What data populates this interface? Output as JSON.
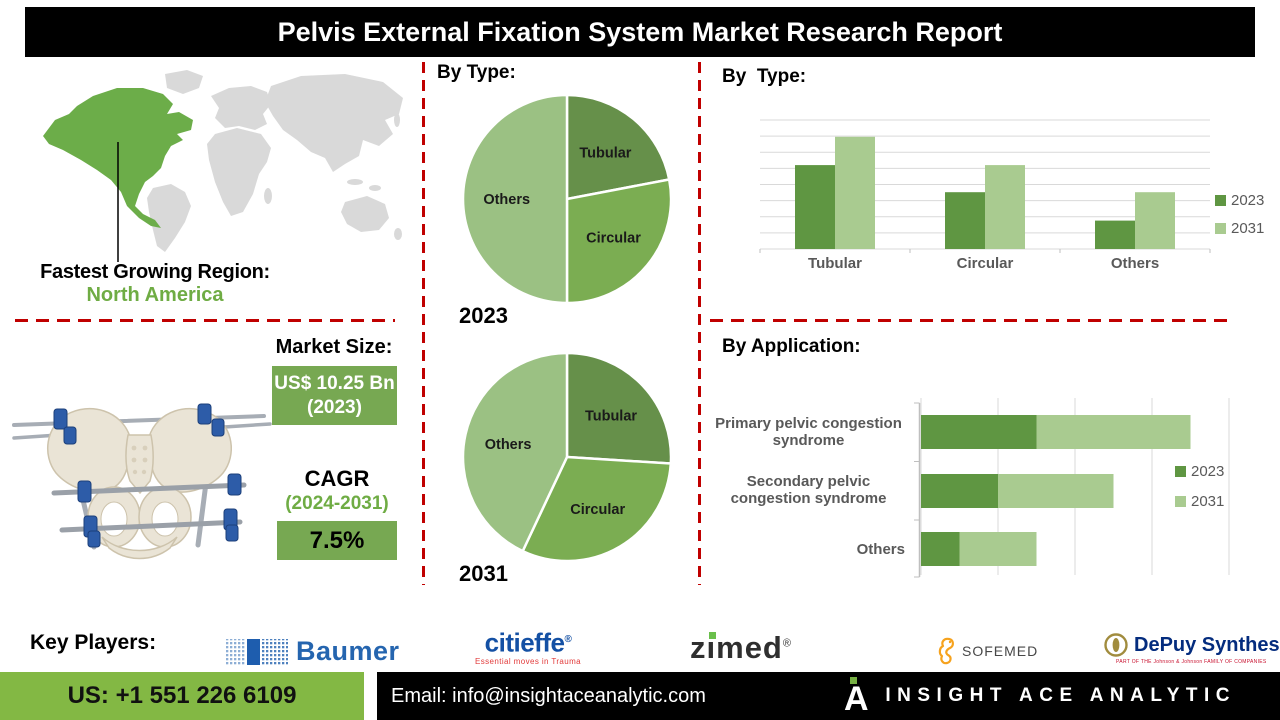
{
  "title": "Pelvis External Fixation System Market Research Report",
  "region": {
    "label": "Fastest Growing Region:",
    "value": "North America"
  },
  "market": {
    "label": "Market Size:",
    "value": "US$ 10.25 Bn",
    "value_year": "(2023)",
    "cagr_label": "CAGR",
    "cagr_period": "(2024-2031)",
    "cagr_value": "7.5%"
  },
  "sections": {
    "pie_header": "By Type:",
    "bar_header": "By  Type:",
    "application_header": "By Application:"
  },
  "chart_data": [
    {
      "type": "pie",
      "title": "By Type:",
      "year_label": "2023",
      "labels": [
        "Tubular",
        "Circular",
        "Others"
      ],
      "values": [
        22,
        28,
        50
      ],
      "colors": [
        "#66904a",
        "#7bad52",
        "#9bc183"
      ],
      "legend_position": "none"
    },
    {
      "type": "pie",
      "title": "By Type:",
      "year_label": "2031",
      "labels": [
        "Tubular",
        "Circular",
        "Others"
      ],
      "values": [
        26,
        31,
        43
      ],
      "colors": [
        "#66904a",
        "#7bad52",
        "#9bc183"
      ],
      "legend_position": "none"
    },
    {
      "type": "bar",
      "title": "By Type:",
      "categories": [
        "Tubular",
        "Circular",
        "Others"
      ],
      "series": [
        {
          "name": "2023",
          "color": "#5f9642",
          "values": [
            65,
            44,
            22
          ]
        },
        {
          "name": "2031",
          "color": "#a9cb90",
          "values": [
            87,
            65,
            44
          ]
        }
      ],
      "ylim": [
        0,
        100
      ],
      "gridlines": 9,
      "grid": true,
      "legend_position": "right"
    },
    {
      "type": "bar",
      "orientation": "horizontal",
      "stacked": true,
      "title": "By Application:",
      "categories": [
        "Primary pelvic congestion syndrome",
        "Secondary pelvic congestion syndrome",
        "Others"
      ],
      "series": [
        {
          "name": "2023",
          "color": "#5f9642",
          "values": [
            1.5,
            1.0,
            0.5
          ]
        },
        {
          "name": "2031",
          "color": "#a9cb90",
          "values": [
            2.0,
            1.5,
            1.0
          ]
        }
      ],
      "xlim": [
        0,
        4
      ],
      "grid": true,
      "legend_position": "right"
    }
  ],
  "key_players": {
    "label": "Key Players:",
    "companies": [
      {
        "name": "Baumer"
      },
      {
        "name": "citieffe",
        "reg": "®",
        "tagline": "Essential moves in Trauma"
      },
      {
        "name_z": "z",
        "name_i": "ı",
        "name_rest": "med",
        "reg": "®",
        "name": "zimed"
      },
      {
        "name": "SOFEMED"
      },
      {
        "name": "DePuy Synthes",
        "tagline": "PART OF THE Johnson & Johnson FAMILY OF COMPANIES"
      }
    ]
  },
  "footer": {
    "phone": "US: +1 551 226 6109",
    "email": "Email: info@insightaceanalytic.com",
    "brand": "INSIGHT ACE ANALYTIC"
  },
  "colors": {
    "accent_green": "#6fac44",
    "box_green": "#77a852",
    "footer_green": "#83b844",
    "dashed_red": "#c00000",
    "map_gray": "#d9d9d9",
    "map_highlight": "#6cad49",
    "series_2023": "#5f9642",
    "series_2031": "#a9cb90",
    "label_gray": "#595959"
  }
}
